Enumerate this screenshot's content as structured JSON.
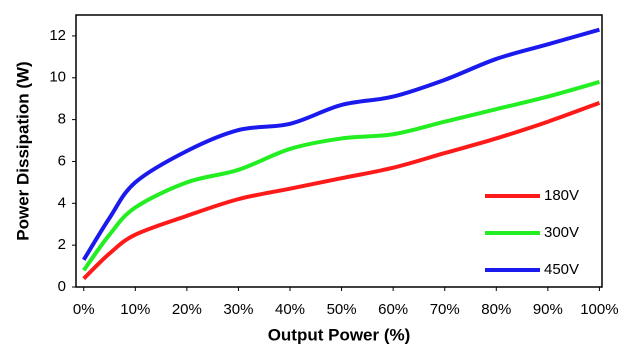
{
  "chart_data": {
    "type": "line",
    "x_label": "Output Power (%)",
    "y_label": "Power Dissipation (W)",
    "x": [
      0,
      5,
      10,
      20,
      30,
      40,
      50,
      60,
      70,
      80,
      90,
      100
    ],
    "series": [
      {
        "name": "180V",
        "color": "#ff1a1a",
        "values": [
          0.4,
          1.6,
          2.5,
          3.4,
          4.2,
          4.7,
          5.2,
          5.7,
          6.4,
          7.1,
          7.9,
          8.8
        ]
      },
      {
        "name": "300V",
        "color": "#22ee22",
        "values": [
          0.8,
          2.5,
          3.8,
          5.0,
          5.6,
          6.6,
          7.1,
          7.3,
          7.9,
          8.5,
          9.1,
          9.8
        ]
      },
      {
        "name": "450V",
        "color": "#1a1aee",
        "values": [
          1.3,
          3.3,
          5.0,
          6.5,
          7.5,
          7.8,
          8.7,
          9.1,
          9.9,
          10.9,
          11.6,
          12.3
        ]
      }
    ],
    "xlim": [
      -1.5,
      100.5
    ],
    "ylim": [
      0,
      13
    ],
    "xticks": [
      {
        "value": 0,
        "label": "0%"
      },
      {
        "value": 10,
        "label": "10%"
      },
      {
        "value": 20,
        "label": "20%"
      },
      {
        "value": 30,
        "label": "30%"
      },
      {
        "value": 40,
        "label": "40%"
      },
      {
        "value": 50,
        "label": "50%"
      },
      {
        "value": 60,
        "label": "60%"
      },
      {
        "value": 70,
        "label": "70%"
      },
      {
        "value": 80,
        "label": "80%"
      },
      {
        "value": 90,
        "label": "90%"
      },
      {
        "value": 100,
        "label": "100%"
      }
    ],
    "yticks": [
      0,
      2,
      4,
      6,
      8,
      10,
      12
    ],
    "grid": false,
    "legend": "lower right"
  }
}
